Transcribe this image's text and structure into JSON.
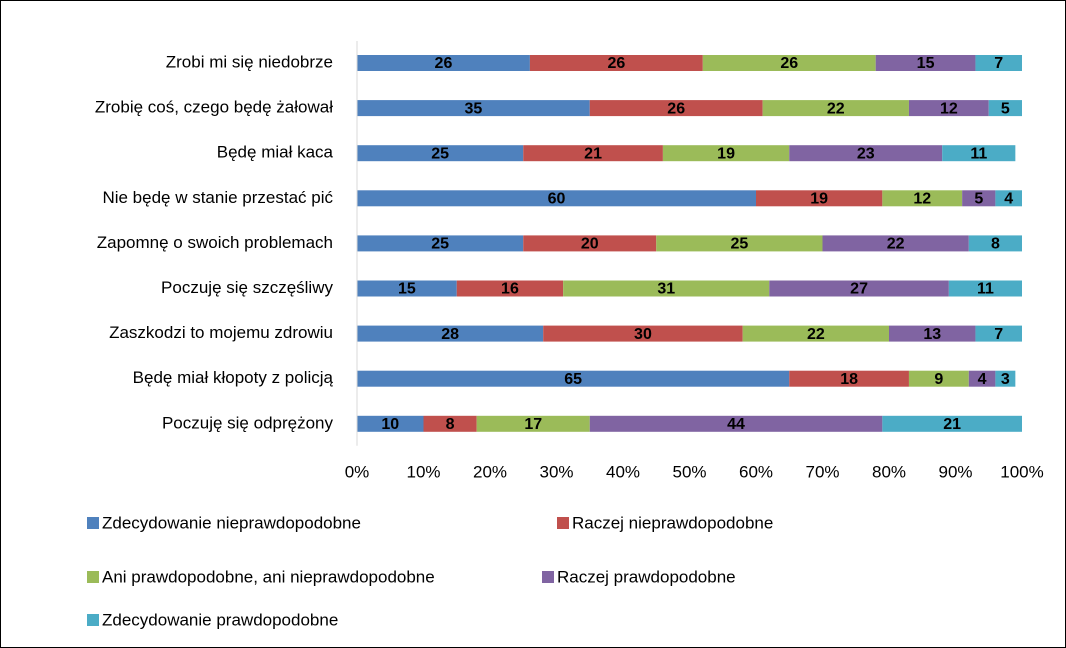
{
  "chart_data": {
    "type": "stacked_bar",
    "orientation": "horizontal",
    "categories": [
      "Zrobi mi się niedobrze",
      "Zrobię coś, czego będę żałował",
      "Będę miał kaca",
      "Nie będę w stanie przestać pić",
      "Zapomnę o swoich problemach",
      "Poczuję się szczęśliwy",
      "Zaszkodzi to mojemu zdrowiu",
      "Będę miał kłopoty z policją",
      "Poczuję się odprężony"
    ],
    "series": [
      {
        "name": "Zdecydowanie nieprawdopodobne",
        "color": "#4f81bd",
        "values": [
          26,
          35,
          25,
          60,
          25,
          15,
          28,
          65,
          10
        ]
      },
      {
        "name": "Raczej nieprawdopodobne",
        "color": "#c0504d",
        "values": [
          26,
          26,
          21,
          19,
          20,
          16,
          30,
          18,
          8
        ]
      },
      {
        "name": "Ani prawdopodobne, ani nieprawdopodobne",
        "color": "#9bbb59",
        "values": [
          26,
          22,
          19,
          12,
          25,
          31,
          22,
          9,
          17
        ]
      },
      {
        "name": "Raczej prawdopodobne",
        "color": "#8064a2",
        "values": [
          15,
          12,
          23,
          5,
          22,
          27,
          13,
          4,
          44
        ]
      },
      {
        "name": "Zdecydowanie prawdopodobne",
        "color": "#4bacc6",
        "values": [
          7,
          5,
          11,
          4,
          8,
          11,
          7,
          3,
          21
        ]
      }
    ],
    "xlim": [
      0,
      100
    ],
    "xticks": [
      {
        "value": 0,
        "label": "0%"
      },
      {
        "value": 10,
        "label": "10%"
      },
      {
        "value": 20,
        "label": "20%"
      },
      {
        "value": 30,
        "label": "30%"
      },
      {
        "value": 40,
        "label": "40%"
      },
      {
        "value": 50,
        "label": "50%"
      },
      {
        "value": 60,
        "label": "60%"
      },
      {
        "value": 70,
        "label": "70%"
      },
      {
        "value": 80,
        "label": "80%"
      },
      {
        "value": 90,
        "label": "90%"
      },
      {
        "value": 100,
        "label": "100%"
      }
    ],
    "grid": false,
    "legend": "bottom"
  }
}
